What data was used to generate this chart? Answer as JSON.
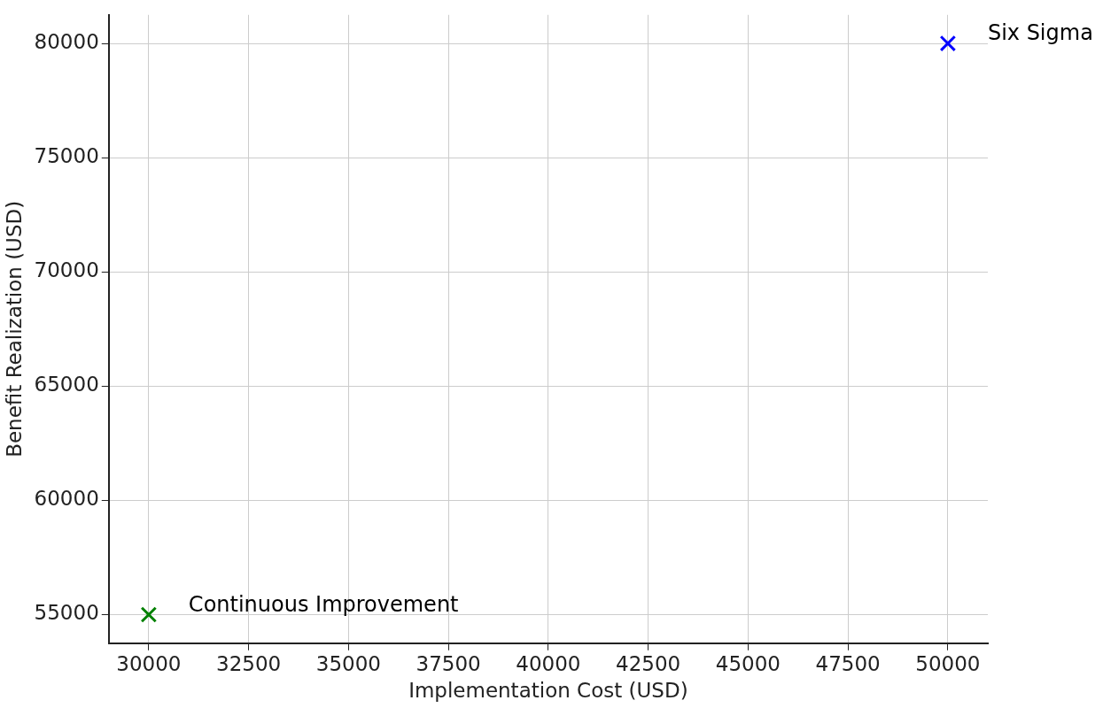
{
  "chart_data": {
    "type": "scatter",
    "xlabel": "Implementation Cost (USD)",
    "ylabel": "Benefit Realization (USD)",
    "series": [
      {
        "name": "Six Sigma",
        "color": "#0000ff",
        "x": [
          50000
        ],
        "values": [
          80000
        ]
      },
      {
        "name": "Continuous Improvement",
        "color": "#008000",
        "x": [
          30000
        ],
        "values": [
          55000
        ]
      }
    ],
    "xlim": [
      29000,
      51000
    ],
    "xticks": [
      30000,
      32500,
      35000,
      37500,
      40000,
      42500,
      45000,
      47500,
      50000
    ],
    "ylim": [
      53750,
      81250
    ],
    "yticks": [
      55000,
      60000,
      65000,
      70000,
      75000,
      80000
    ],
    "grid": true,
    "legend": false,
    "marker": "cross"
  }
}
